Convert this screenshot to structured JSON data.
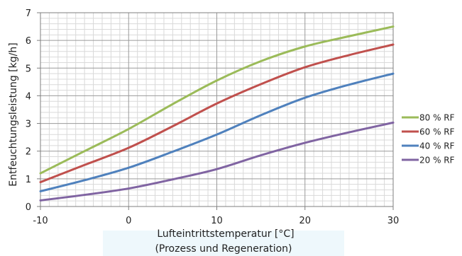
{
  "chart_data": {
    "type": "line",
    "xlabel": "Lufteintrittstemperatur [°C]",
    "xlabel_line2": "(Prozess und Regeneration)",
    "ylabel": "Entfeuchtungsleistung [kg/h]",
    "xlim": [
      -10,
      30
    ],
    "ylim": [
      0,
      7
    ],
    "xticks": [
      -10,
      0,
      10,
      20,
      30
    ],
    "yticks": [
      0,
      1,
      2,
      3,
      4,
      5,
      6,
      7
    ],
    "grid": true,
    "legend_position": "right",
    "x": [
      -10,
      -5,
      0,
      5,
      10,
      15,
      20,
      25,
      30
    ],
    "series": [
      {
        "name": "80 % RF",
        "color": "#9bbb59",
        "values": [
          1.2,
          2.0,
          2.8,
          3.7,
          4.55,
          5.25,
          5.78,
          6.15,
          6.5
        ]
      },
      {
        "name": "60 % RF",
        "color": "#c0504d",
        "values": [
          0.88,
          1.5,
          2.12,
          2.9,
          3.72,
          4.42,
          5.03,
          5.47,
          5.85
        ]
      },
      {
        "name": "40 % RF",
        "color": "#4f81bd",
        "values": [
          0.55,
          0.95,
          1.4,
          1.98,
          2.6,
          3.3,
          3.93,
          4.4,
          4.8
        ]
      },
      {
        "name": "20 % RF",
        "color": "#8064a2",
        "values": [
          0.22,
          0.42,
          0.65,
          0.98,
          1.35,
          1.85,
          2.3,
          2.68,
          3.03
        ]
      }
    ]
  }
}
